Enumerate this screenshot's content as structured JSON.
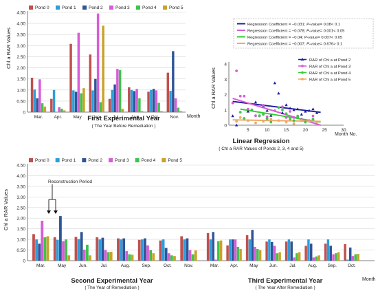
{
  "chart_data": [
    {
      "type": "bar",
      "title": "First Experimental Year",
      "subtitle": "( The Year Before Remediation )",
      "xlabel": "Month",
      "ylabel": "Chl a RAR Values",
      "ylim": [
        0,
        4.5
      ],
      "ytick_labels": [
        "0",
        "0.50",
        "1.00",
        "1.50",
        "2.00",
        "2.50",
        "3.00",
        "3.50",
        "4.00",
        "4.50"
      ],
      "categories": [
        "Mar.",
        "Apr.",
        "May",
        "Jun.",
        "Jul.",
        "Aug.",
        "Oct.",
        "Nov."
      ],
      "legend_position": "top",
      "series": [
        {
          "name": "Pond 0",
          "color": "#c0504d",
          "values": [
            1.55,
            0.6,
            3.08,
            2.6,
            0.6,
            1.12,
            0.92,
            1.78
          ]
        },
        {
          "name": "Pond 1",
          "color": "#2e9ddb",
          "values": [
            1.02,
            1.0,
            0.98,
            0.98,
            1.0,
            1.0,
            1.0,
            0.96
          ]
        },
        {
          "name": "Pond 2",
          "color": "#2f5597",
          "values": [
            0.62,
            0.0,
            0.92,
            1.5,
            1.25,
            0.95,
            1.05,
            2.75
          ]
        },
        {
          "name": "Pond 3",
          "color": "#d85cd8",
          "values": [
            1.48,
            0.22,
            3.58,
            4.45,
            1.95,
            1.05,
            0.98,
            0.62
          ]
        },
        {
          "name": "Pond 4",
          "color": "#3dc44a",
          "values": [
            0.4,
            0.15,
            0.85,
            0.45,
            1.9,
            0.62,
            0.42,
            0.2
          ]
        },
        {
          "name": "Pond 5",
          "color": "#c9a227",
          "values": [
            0.25,
            0.08,
            1.08,
            3.9,
            0.15,
            0.05,
            0.05,
            0.05
          ]
        }
      ]
    },
    {
      "type": "scatter",
      "title": "Linear Regression",
      "subtitle": "( Chl a RAR Values of Ponds 2, 3, 4 and 5)",
      "xlabel": "Month No.",
      "ylabel": "Chl a RAR Values",
      "xlim": [
        0,
        30
      ],
      "ylim": [
        0,
        4
      ],
      "xtick_labels": [
        "5",
        "10",
        "15",
        "20",
        "25",
        "30"
      ],
      "ytick_labels": [
        "0",
        "1",
        "2",
        "3",
        "4"
      ],
      "regression_lines": [
        {
          "label_prefix": "Regression Coefficient = −0.031;",
          "p_label": "P-value",
          "p_text": "= 0.08< 0.1",
          "color": "#1f1f9e",
          "x": [
            1,
            24
          ],
          "y": [
            1.55,
            0.84
          ]
        },
        {
          "label_prefix": "Regression Coefficient = −0.078;",
          "p_label": "P-value",
          "p_text": "= 0.001< 0.05",
          "color": "#d85cd8",
          "x": [
            1,
            24
          ],
          "y": [
            1.75,
            0.0
          ]
        },
        {
          "label_prefix": "Regression Coefficient = −0.04;",
          "p_label": "P-value",
          "p_text": "= 0.007< 0.05",
          "color": "#2fd12f",
          "x": [
            3,
            24
          ],
          "y": [
            1.05,
            0.2
          ]
        },
        {
          "label_prefix": "Regression Coefficient = −0.007;",
          "p_label": "P-value",
          "p_text": "= 0.676> 0.1",
          "color": "#f0a868",
          "x": [
            1,
            24
          ],
          "y": [
            0.35,
            0.25
          ]
        }
      ],
      "series": [
        {
          "name": "RAR of Chl a at Pond 2",
          "marker": "triangle",
          "color": "#1f1f9e",
          "x": [
            1,
            2,
            5,
            7,
            9,
            10,
            11,
            12,
            13,
            14,
            15,
            16,
            17,
            18,
            19,
            20,
            21,
            22,
            23
          ],
          "y": [
            0.6,
            0.0,
            0.9,
            1.5,
            1.25,
            0.95,
            0.62,
            2.75,
            2.08,
            0.8,
            1.32,
            1.1,
            1.0,
            1.05,
            0.7,
            0.9,
            0.95,
            1.05,
            0.8
          ]
        },
        {
          "name": "RAR of Chl a at Pond 3",
          "marker": "circle",
          "color": "#d85cd8",
          "x": [
            1,
            2,
            3,
            4,
            5,
            6,
            7,
            8,
            9,
            10,
            12,
            14,
            15,
            16,
            17,
            18,
            19,
            20,
            21,
            22
          ],
          "y": [
            1.45,
            3.55,
            1.9,
            1.9,
            1.05,
            1.0,
            0.62,
            0.6,
            1.3,
            0.55,
            0.95,
            1.2,
            0.5,
            0.9,
            0.5,
            0.6,
            0.4,
            0.2,
            0.3,
            0.6
          ]
        },
        {
          "name": "RAR of Chl a at Pond 4",
          "marker": "circle",
          "color": "#3dc44a",
          "x": [
            3,
            4,
            6,
            8,
            9,
            10,
            11,
            13,
            14,
            15,
            16,
            17,
            18,
            19,
            20,
            21,
            22,
            23
          ],
          "y": [
            0.85,
            0.45,
            1.0,
            0.62,
            0.7,
            0.42,
            0.2,
            1.15,
            1.0,
            0.75,
            0.4,
            0.3,
            0.55,
            0.35,
            0.2,
            0.25,
            0.4,
            0.2
          ]
        },
        {
          "name": "RAR of Chl a at Pond 5",
          "marker": "circle",
          "color": "#f0a868",
          "x": [
            2,
            3,
            5,
            7,
            9,
            11,
            13,
            15,
            17,
            19,
            21,
            23
          ],
          "y": [
            0.25,
            0.5,
            0.3,
            0.15,
            0.25,
            0.4,
            0.3,
            0.2,
            0.1,
            0.3,
            0.25,
            0.2
          ]
        }
      ]
    },
    {
      "type": "bar",
      "ylabel": "Chl a RAR Values",
      "xlabel": "Month",
      "ylim": [
        0,
        4.5
      ],
      "ytick_labels": [
        "0",
        "0.50",
        "1.00",
        "1.50",
        "2.00",
        "2.50",
        "3.00",
        "3.50",
        "4.00",
        "4.50"
      ],
      "legend_position": "top",
      "annotation": "Reconstruction Period",
      "groups": [
        {
          "title": "Second Experimental Year",
          "subtitle": "( The Year of Remediation )",
          "categories": [
            "Mar.",
            "May",
            "Jun.",
            "Jul.",
            "Aug.",
            "Sep.",
            "Oct.",
            "Nov."
          ]
        },
        {
          "title": "Third Experimental Year",
          "subtitle": "( The Year After Remediation )",
          "categories": [
            "Mar.",
            "Apr.",
            "May",
            "Jun.",
            "Jul.",
            "Aug.",
            "Sep.",
            "Oct."
          ]
        }
      ],
      "series": [
        {
          "name": "Pond 0",
          "color": "#c0504d",
          "values": [
            1.25,
            1.1,
            1.12,
            1.1,
            1.05,
            0.98,
            0.95,
            1.15,
            1.3,
            0.72,
            1.2,
            0.9,
            0.9,
            0.7,
            0.8,
            0.78
          ]
        },
        {
          "name": "Pond 1",
          "color": "#2e9ddb",
          "values": [
            1.0,
            0.98,
            1.02,
            1.0,
            1.0,
            1.0,
            1.0,
            1.0,
            1.0,
            1.0,
            1.0,
            1.0,
            1.0,
            1.0,
            1.0,
            0.05
          ]
        },
        {
          "name": "Pond 2",
          "color": "#2f5597",
          "values": [
            0.8,
            2.1,
            1.35,
            1.08,
            1.05,
            1.05,
            0.6,
            1.05,
            1.35,
            1.0,
            1.45,
            0.88,
            0.9,
            0.8,
            0.7,
            0.62
          ]
        },
        {
          "name": "Pond 3",
          "color": "#d85cd8",
          "values": [
            1.88,
            0.92,
            0.52,
            0.5,
            0.45,
            0.72,
            0.35,
            0.5,
            0.05,
            1.0,
            0.65,
            0.7,
            0.15,
            0.15,
            0.3,
            0.22
          ]
        },
        {
          "name": "Pond 4",
          "color": "#3dc44a",
          "values": [
            1.1,
            1.0,
            0.75,
            0.4,
            0.3,
            0.5,
            0.25,
            0.3,
            0.92,
            0.65,
            0.55,
            0.35,
            0.35,
            0.2,
            0.35,
            0.3
          ]
        },
        {
          "name": "Pond 5",
          "color": "#c9a227",
          "values": [
            1.15,
            0.25,
            0.25,
            0.42,
            0.28,
            0.35,
            0.22,
            0.48,
            0.95,
            0.55,
            0.5,
            0.4,
            0.4,
            0.25,
            0.4,
            0.32
          ]
        }
      ]
    }
  ]
}
